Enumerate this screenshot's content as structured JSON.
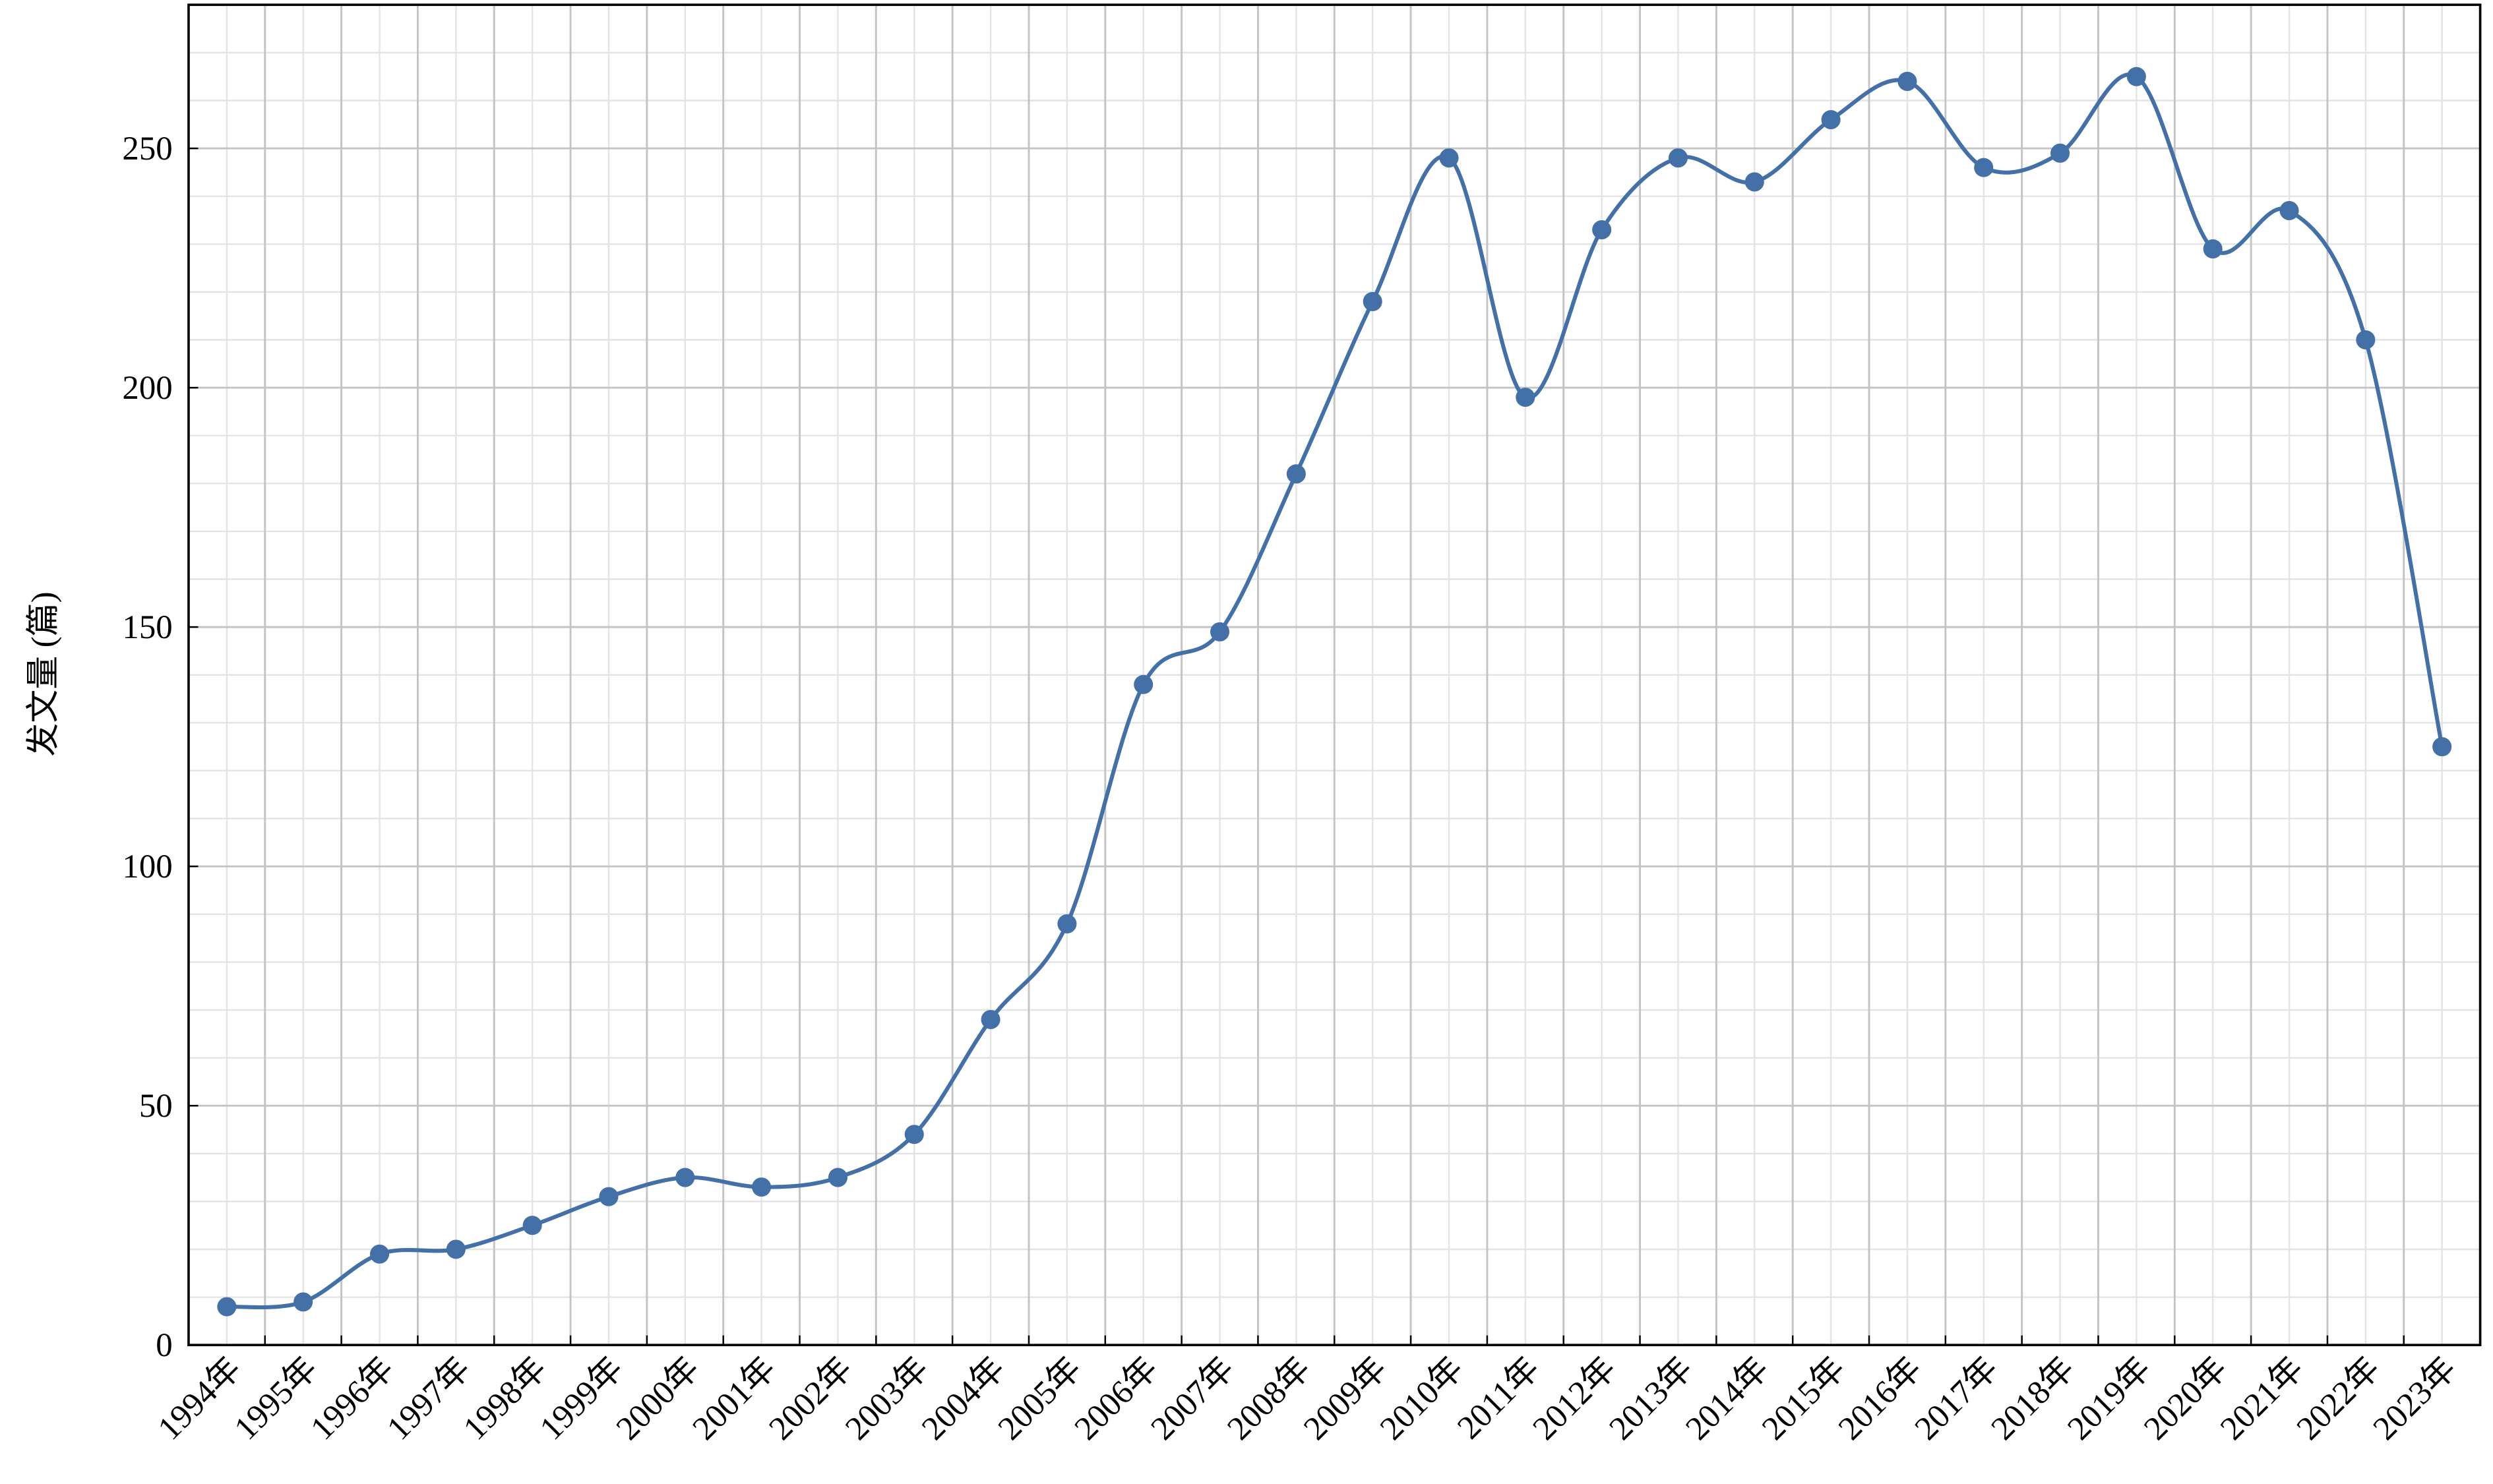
{
  "chart_data": {
    "type": "line",
    "ylabel": "发文量 (篇)",
    "categories": [
      "1994年",
      "1995年",
      "1996年",
      "1997年",
      "1998年",
      "1999年",
      "2000年",
      "2001年",
      "2002年",
      "2003年",
      "2004年",
      "2005年",
      "2006年",
      "2007年",
      "2008年",
      "2009年",
      "2010年",
      "2011年",
      "2012年",
      "2013年",
      "2014年",
      "2015年",
      "2016年",
      "2017年",
      "2018年",
      "2019年",
      "2020年",
      "2021年",
      "2022年",
      "2023年"
    ],
    "series": [
      {
        "color": "#4470a8",
        "values": [
          8,
          9,
          19,
          20,
          25,
          31,
          35,
          33,
          35,
          44,
          68,
          88,
          138,
          149,
          182,
          218,
          248,
          198,
          233,
          248,
          243,
          256,
          264,
          246,
          249,
          265,
          229,
          237,
          210,
          125
        ]
      }
    ],
    "ylim": [
      0,
      280
    ],
    "yticks": [
      0,
      50,
      100,
      150,
      200,
      250
    ],
    "grid": true,
    "smooth": true
  }
}
